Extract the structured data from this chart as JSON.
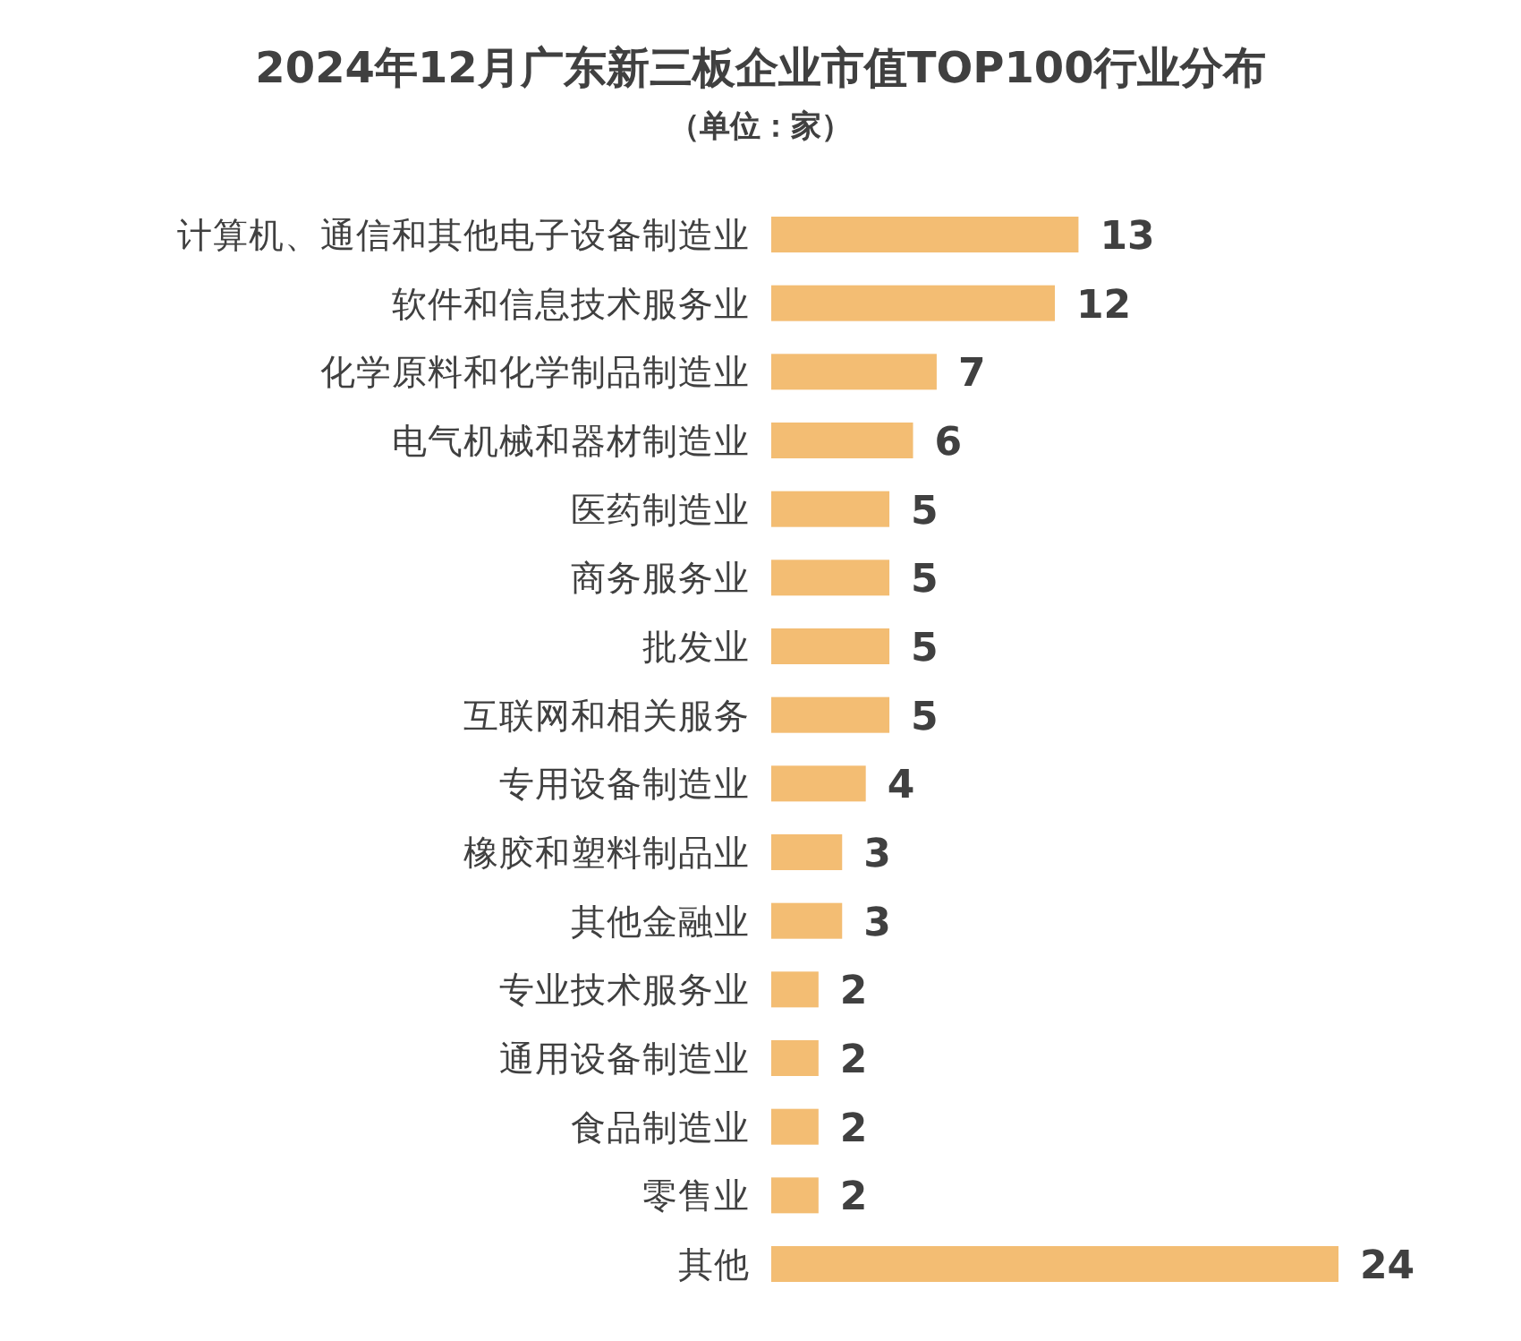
{
  "chart_data": {
    "type": "bar",
    "orientation": "horizontal",
    "title": "2024年12月广东新三板企业市值TOP100行业分布",
    "subtitle": "（单位：家）",
    "categories": [
      "计算机、通信和其他电子设备制造业",
      "软件和信息技术服务业",
      "化学原料和化学制品制造业",
      "电气机械和器材制造业",
      "医药制造业",
      "商务服务业",
      "批发业",
      "互联网和相关服务",
      "专用设备制造业",
      "橡胶和塑料制品业",
      "其他金融业",
      "专业技术服务业",
      "通用设备制造业",
      "食品制造业",
      "零售业",
      "其他"
    ],
    "values": [
      13,
      12,
      7,
      6,
      5,
      5,
      5,
      5,
      4,
      3,
      3,
      2,
      2,
      2,
      2,
      24
    ],
    "color": "#f3bd73",
    "data_labels": true
  }
}
